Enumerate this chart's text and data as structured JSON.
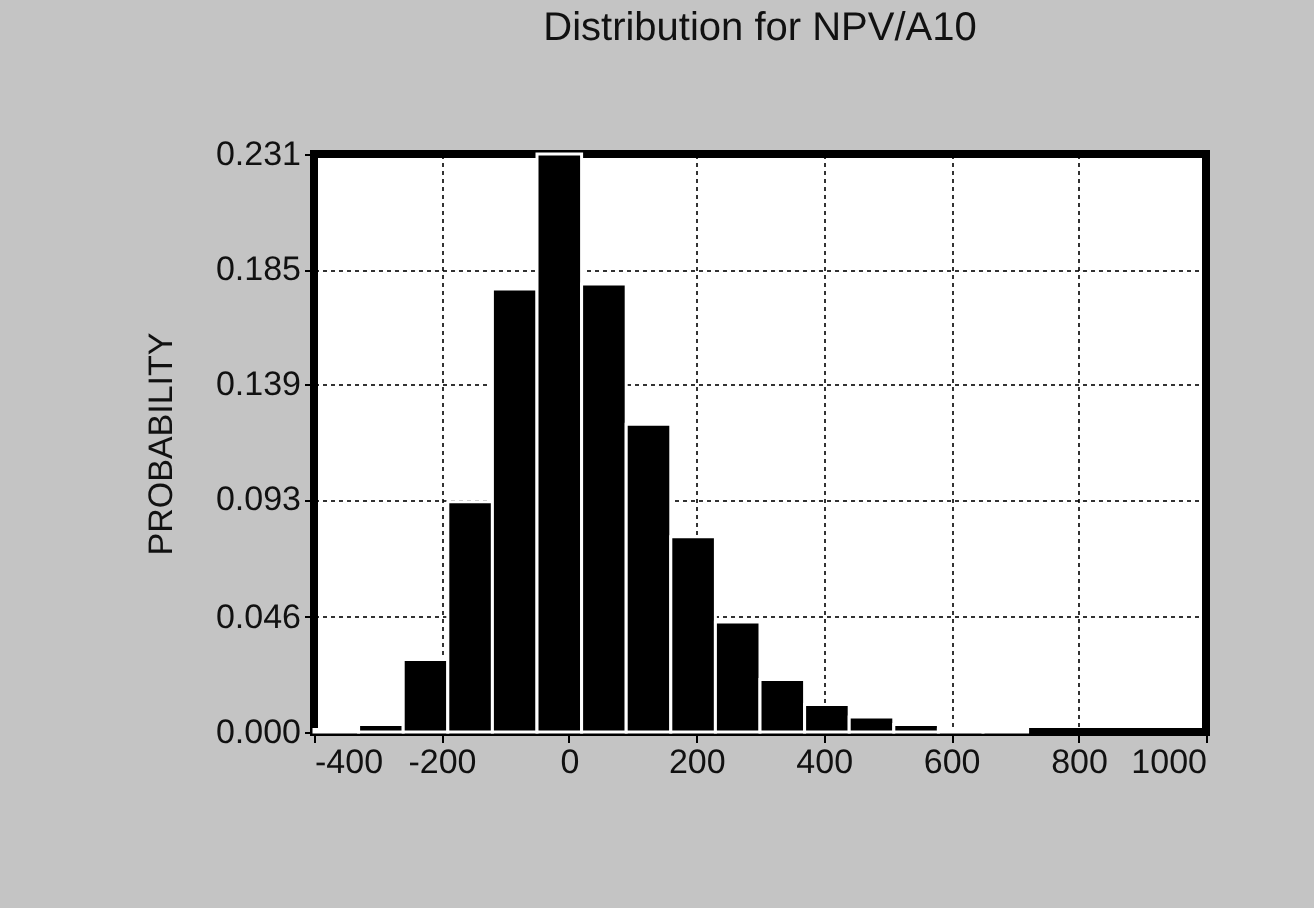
{
  "chart_data": {
    "type": "histogram",
    "title": "Distribution for NPV/A10",
    "ylabel": "PROBABILITY",
    "bins": [
      -400,
      -330,
      -260,
      -190,
      -120,
      -50,
      20,
      90,
      160,
      230,
      300,
      370,
      440,
      510,
      580,
      650,
      720,
      790,
      860,
      930,
      1000
    ],
    "values": [
      0.001,
      0.003,
      0.029,
      0.092,
      0.177,
      0.231,
      0.179,
      0.123,
      0.078,
      0.044,
      0.021,
      0.011,
      0.006,
      0.003,
      0.001,
      0.001,
      0,
      0,
      0,
      0
    ],
    "color": "#000000",
    "xlim": [
      -400,
      1000
    ],
    "xticks": [
      -400,
      -200,
      0,
      200,
      400,
      600,
      800,
      1000
    ],
    "ylim": [
      0,
      0.231
    ],
    "yticks": [
      {
        "value": 0,
        "label": "0.000"
      },
      0.046,
      0.093,
      0.139,
      0.185,
      0.231
    ],
    "grid": true
  }
}
